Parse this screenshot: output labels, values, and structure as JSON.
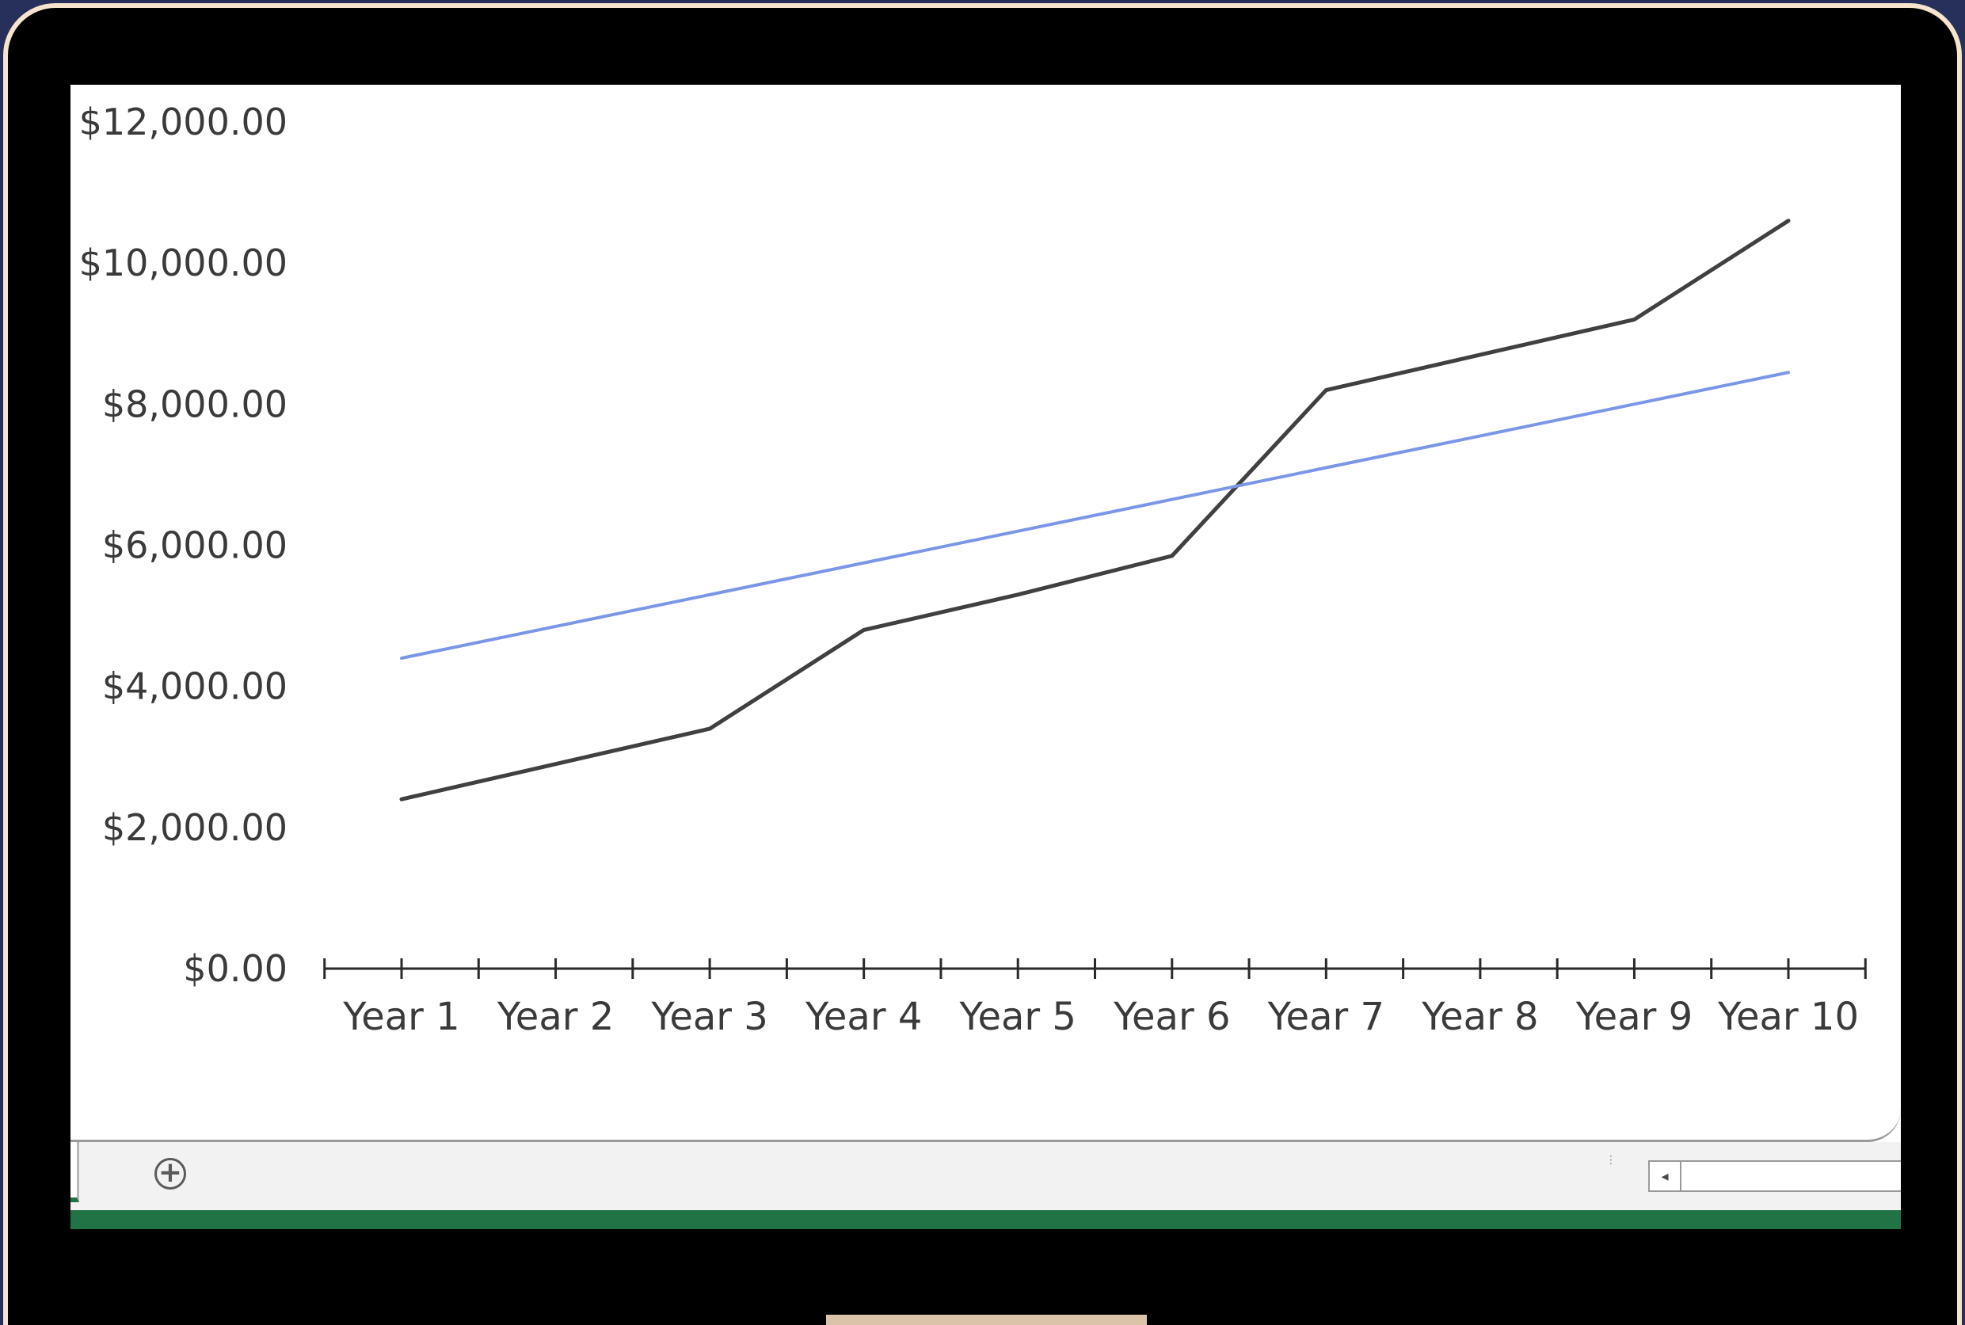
{
  "colors": {
    "background": "#26305a",
    "bezel": "#000000",
    "excel_green": "#217346",
    "series_actual": "#404040",
    "series_trend": "#7b96e6"
  },
  "sheet_bar": {
    "add_sheet_icon": "plus-circle-icon",
    "split_icon": "vertical-dots-icon",
    "scroll_left_icon": "triangle-left-icon",
    "add_symbol": "+",
    "dots": "⋮",
    "arrow": "◂"
  },
  "chart_data": {
    "type": "line",
    "categories": [
      "Year 1",
      "Year 2",
      "Year 3",
      "Year 4",
      "Year 5",
      "Year 6",
      "Year 7",
      "Year 8",
      "Year 9",
      "Year 10"
    ],
    "series": [
      {
        "values": [
          2400,
          2900,
          3400,
          4800,
          5300,
          5850,
          8200,
          8700,
          9200,
          10600
        ]
      },
      {
        "values": [
          4400,
          4850,
          5300,
          5750,
          6200,
          6650,
          7100,
          7550,
          8000,
          8450
        ]
      }
    ],
    "yticks": [
      "$0.00",
      "$2,000.00",
      "$4,000.00",
      "$6,000.00",
      "$8,000.00",
      "$10,000.00",
      "$12,000.00"
    ],
    "ylim": [
      0,
      12000
    ],
    "grid": false,
    "legend": "none",
    "title": "",
    "xlabel": "",
    "ylabel": ""
  }
}
